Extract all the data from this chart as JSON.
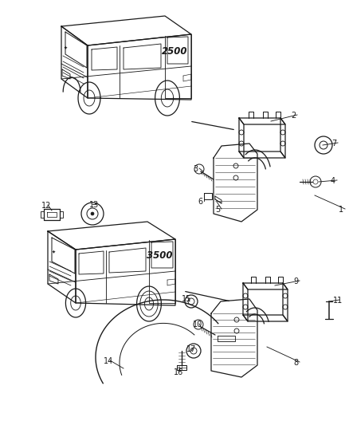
{
  "background_color": "#ffffff",
  "figsize": [
    4.38,
    5.33
  ],
  "dpi": 100,
  "line_color": "#1a1a1a",
  "text_color": "#1a1a1a",
  "font_size": 7.0,
  "parts": [
    {
      "id": "1",
      "label": "1"
    },
    {
      "id": "2",
      "label": "2"
    },
    {
      "id": "3",
      "label": "3"
    },
    {
      "id": "4",
      "label": "4"
    },
    {
      "id": "5",
      "label": "5"
    },
    {
      "id": "6",
      "label": "6"
    },
    {
      "id": "7",
      "label": "7"
    },
    {
      "id": "8",
      "label": "8"
    },
    {
      "id": "9",
      "label": "9"
    },
    {
      "id": "10",
      "label": "10"
    },
    {
      "id": "11",
      "label": "11"
    },
    {
      "id": "12",
      "label": "12"
    },
    {
      "id": "13",
      "label": "13"
    },
    {
      "id": "14",
      "label": "14"
    },
    {
      "id": "15",
      "label": "15"
    },
    {
      "id": "16",
      "label": "16"
    },
    {
      "id": "17",
      "label": "17"
    }
  ]
}
